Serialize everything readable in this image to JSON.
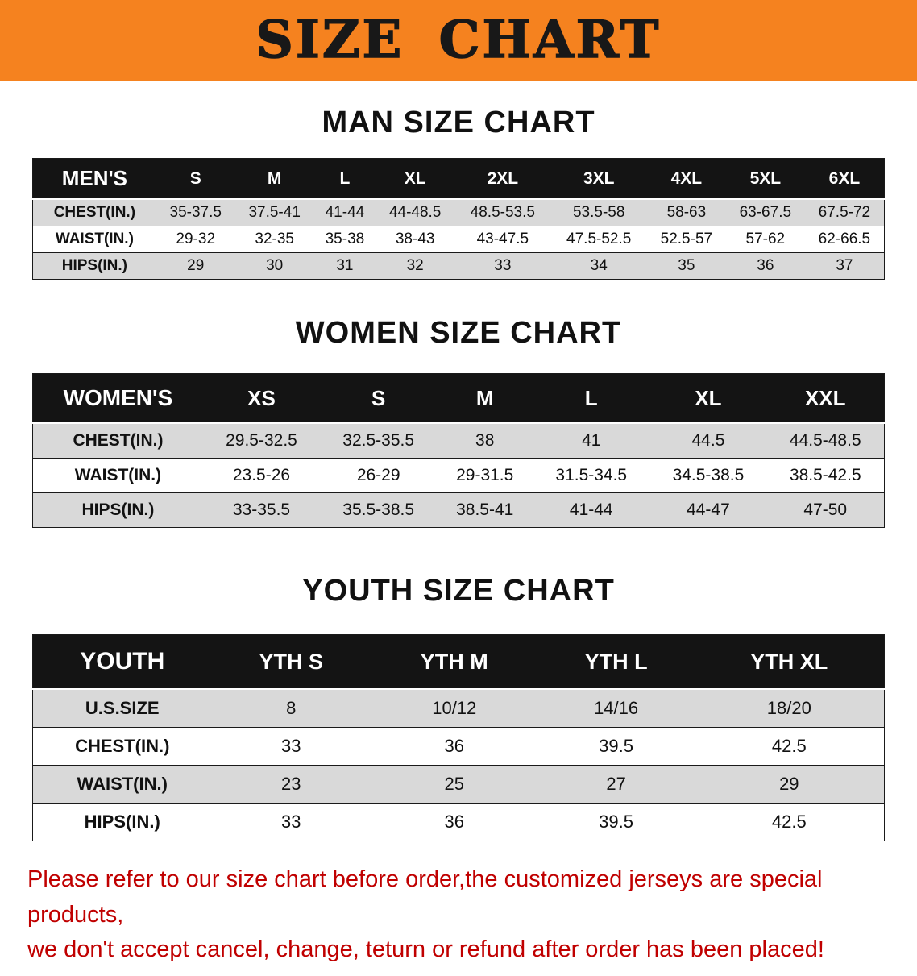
{
  "banner": {
    "title": "SIZE CHART"
  },
  "chart_data": [
    {
      "type": "table",
      "title": "MAN SIZE CHART",
      "columns": [
        "MEN'S",
        "S",
        "M",
        "L",
        "XL",
        "2XL",
        "3XL",
        "4XL",
        "5XL",
        "6XL"
      ],
      "rows": [
        [
          "CHEST(IN.)",
          "35-37.5",
          "37.5-41",
          "41-44",
          "44-48.5",
          "48.5-53.5",
          "53.5-58",
          "58-63",
          "63-67.5",
          "67.5-72"
        ],
        [
          "WAIST(IN.)",
          "29-32",
          "32-35",
          "35-38",
          "38-43",
          "43-47.5",
          "47.5-52.5",
          "52.5-57",
          "57-62",
          "62-66.5"
        ],
        [
          "HIPS(IN.)",
          "29",
          "30",
          "31",
          "32",
          "33",
          "34",
          "35",
          "36",
          "37"
        ]
      ]
    },
    {
      "type": "table",
      "title": "WOMEN SIZE CHART",
      "columns": [
        "WOMEN'S",
        "XS",
        "S",
        "M",
        "L",
        "XL",
        "XXL"
      ],
      "rows": [
        [
          "CHEST(IN.)",
          "29.5-32.5",
          "32.5-35.5",
          "38",
          "41",
          "44.5",
          "44.5-48.5"
        ],
        [
          "WAIST(IN.)",
          "23.5-26",
          "26-29",
          "29-31.5",
          "31.5-34.5",
          "34.5-38.5",
          "38.5-42.5"
        ],
        [
          "HIPS(IN.)",
          "33-35.5",
          "35.5-38.5",
          "38.5-41",
          "41-44",
          "44-47",
          "47-50"
        ]
      ]
    },
    {
      "type": "table",
      "title": "YOUTH SIZE CHART",
      "columns": [
        "YOUTH",
        "YTH S",
        "YTH M",
        "YTH L",
        "YTH XL"
      ],
      "rows": [
        [
          "U.S.SIZE",
          "8",
          "10/12",
          "14/16",
          "18/20"
        ],
        [
          "CHEST(IN.)",
          "33",
          "36",
          "39.5",
          "42.5"
        ],
        [
          "WAIST(IN.)",
          "23",
          "25",
          "27",
          "29"
        ],
        [
          "HIPS(IN.)",
          "33",
          "36",
          "39.5",
          "42.5"
        ]
      ]
    }
  ],
  "footer": {
    "line1": "Please refer to our size chart before order,the customized jerseys are special products,",
    "line2": "we don't accept cancel, change, teturn or refund after order has been placed!"
  },
  "colors": {
    "banner_bg": "#F5821F",
    "table_header_bg": "#141414",
    "row_gray": "#D9D9D9",
    "row_white": "#FFFFFF",
    "disclaimer_red": "#C00000"
  }
}
